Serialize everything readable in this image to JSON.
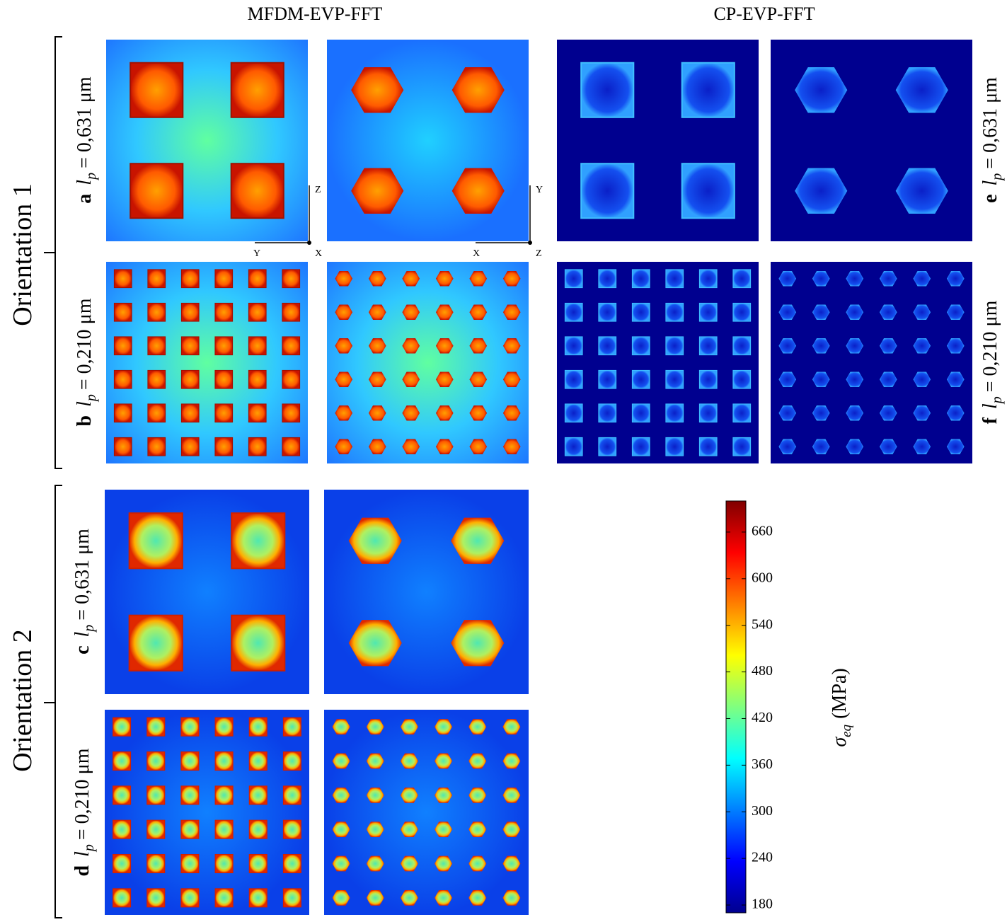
{
  "columns": [
    "MFDM-EVP-FFT",
    "CP-EVP-FFT"
  ],
  "groups": [
    {
      "label": "Orientation 1"
    },
    {
      "label": "Orientation 2"
    }
  ],
  "rows": [
    {
      "letter": "a",
      "symbol": "l",
      "subscript": "p",
      "equation": "= 0,631 μm"
    },
    {
      "letter": "b",
      "symbol": "l",
      "subscript": "p",
      "equation": "= 0,210 μm"
    },
    {
      "letter": "c",
      "symbol": "l",
      "subscript": "p",
      "equation": "= 0,631 μm"
    },
    {
      "letter": "d",
      "symbol": "l",
      "subscript": "p",
      "equation": "= 0,210 μm"
    },
    {
      "letter": "e",
      "symbol": "l",
      "subscript": "p",
      "equation": "= 0,631 μm"
    },
    {
      "letter": "f",
      "symbol": "l",
      "subscript": "p",
      "equation": "= 0,210 μm"
    }
  ],
  "axes": [
    {
      "up": "Z",
      "left": "Y",
      "corner": "X"
    },
    {
      "up": "Y",
      "left": "X",
      "corner": "Z"
    }
  ],
  "colorbar": {
    "label_symbol": "σ",
    "label_subscript": "eq",
    "label_unit": "(MPa)",
    "lim": [
      170,
      700
    ],
    "ticks": [
      180,
      240,
      300,
      360,
      420,
      480,
      540,
      600,
      660
    ]
  }
}
